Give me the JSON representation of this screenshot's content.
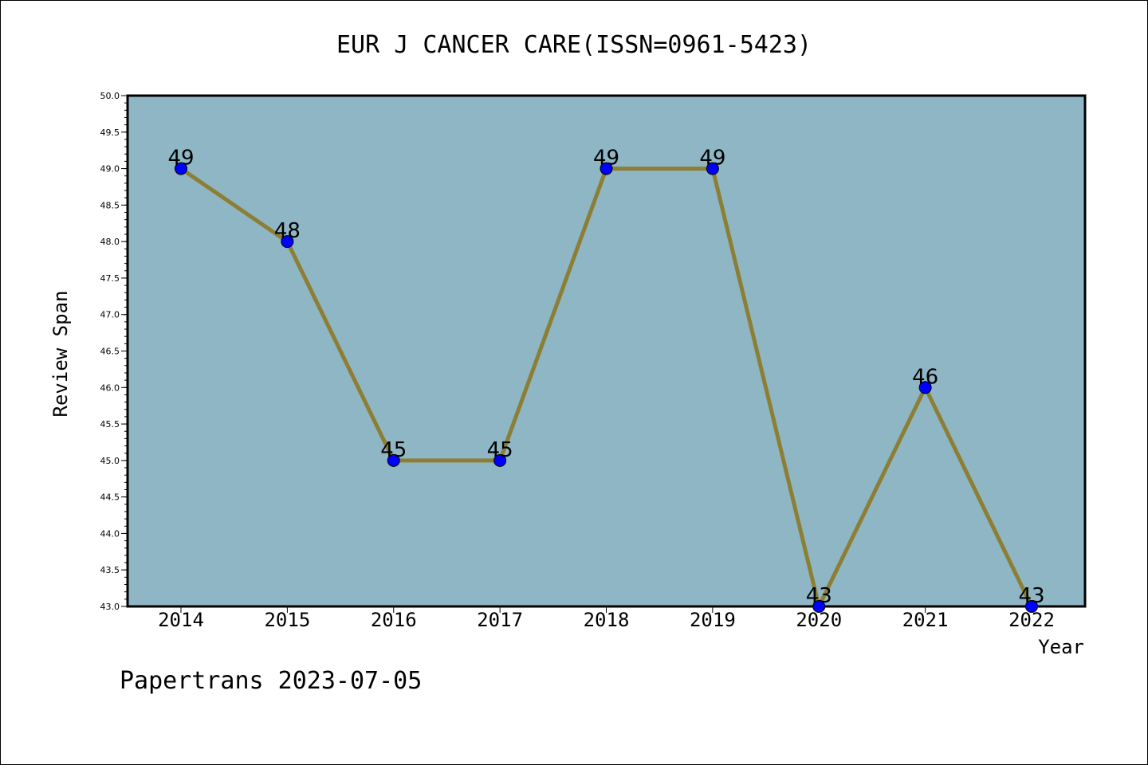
{
  "chart_data": {
    "type": "line",
    "title": "EUR J CANCER CARE(ISSN=0961-5423)",
    "xlabel": "Year",
    "ylabel": "Review Span",
    "categories": [
      "2014",
      "2015",
      "2016",
      "2017",
      "2018",
      "2019",
      "2020",
      "2021",
      "2022"
    ],
    "series": [
      {
        "values": [
          49,
          48,
          45,
          45,
          49,
          49,
          43,
          46,
          43
        ]
      }
    ],
    "data_labels": [
      "49",
      "48",
      "45",
      "45",
      "49",
      "49",
      "43",
      "46",
      "43"
    ],
    "ylim": [
      43.0,
      50.0
    ],
    "yticks": [
      "43.0",
      "43.5",
      "44.0",
      "44.5",
      "45.0",
      "45.5",
      "46.0",
      "46.5",
      "47.0",
      "47.5",
      "48.0",
      "48.5",
      "49.0",
      "49.5",
      "50.0"
    ],
    "grid": false,
    "colors": {
      "plot_background": "#8fb6c4",
      "line": "#8c7f35",
      "marker": "#0000ff"
    }
  },
  "footer": {
    "watermark": "Papertrans 2023-07-05"
  }
}
